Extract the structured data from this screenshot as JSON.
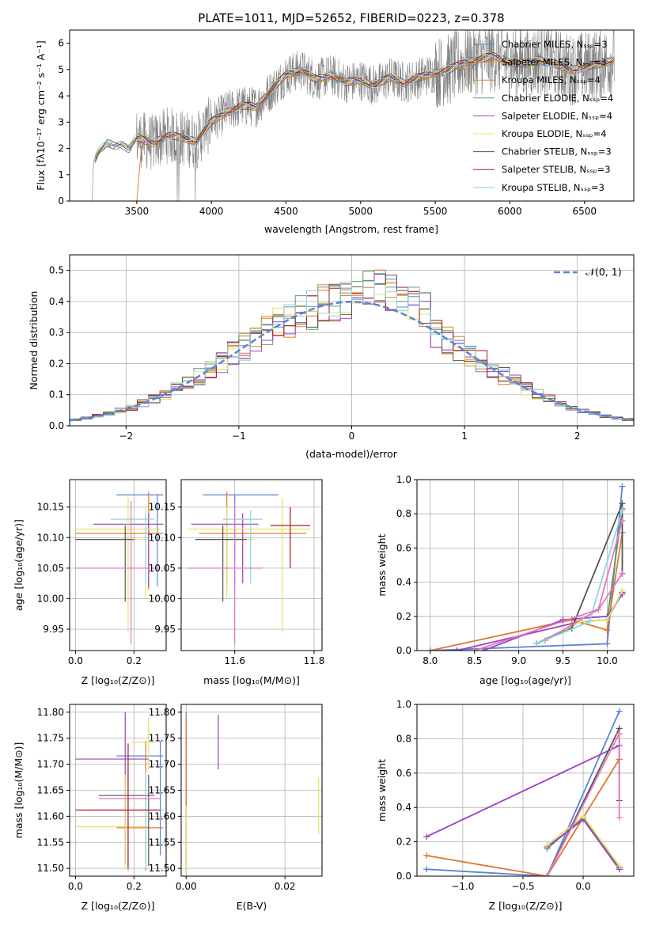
{
  "title": "PLATE=1011, MJD=52652, FIBERID=0223, z=0.378",
  "colors": {
    "series": [
      "#5b84d4",
      "#e0782a",
      "#d98b1c",
      "#5a9a6a",
      "#9b3fc0",
      "#e4e36a",
      "#555555",
      "#a51f1f",
      "#8fd3e0"
    ],
    "extra_pink": "#e377c2",
    "data_gray": "#808080",
    "normal_dash": "#5b84d4"
  },
  "spectrum": {
    "xlabel": "wavelength [Angstrom, rest frame]",
    "ylabel": "Flux [fλ10⁻¹⁷ erg cm⁻² s⁻¹ A⁻¹]",
    "legend": [
      "Chabrier MILES, Nₛₛₚ=3",
      "Salpeter MILES, Nₛₛₚ=3",
      "Kroupa MILES, Nₛₛₚ=4",
      "Chabrier ELODIE, Nₛₛₚ=4",
      "Salpeter ELODIE, Nₛₛₚ=4",
      "Kroupa ELODIE, Nₛₛₚ=4",
      "Chabrier STELIB, Nₛₛₚ=3",
      "Salpeter STELIB, Nₛₛₚ=3",
      "Kroupa STELIB, Nₛₛₚ=3"
    ]
  },
  "hist": {
    "xlabel": "(data-model)/error",
    "ylabel": "Normed distribution",
    "legend": "𝒩(0, 1)"
  },
  "panels": {
    "p3": {
      "xlabel": "Z [log₁₀(Z/Z⊙)]",
      "ylabel": "age  [log₁₀(age/yr)]"
    },
    "p4": {
      "xlabel": "mass [log₁₀(M/M⊙)]"
    },
    "p5": {
      "xlabel": "age  [log₁₀(age/yr)]",
      "ylabel": "mass weight"
    },
    "p6": {
      "xlabel": "Z [log₁₀(Z/Z⊙)]",
      "ylabel": "mass [log₁₀(M/M⊙)]"
    },
    "p7": {
      "xlabel": "E(B-V)"
    },
    "p8": {
      "xlabel": "Z [log₁₀(Z/Z⊙)]",
      "ylabel": "mass weight"
    }
  },
  "chart_data": [
    {
      "id": "spectrum",
      "type": "line",
      "title": "PLATE=1011, MJD=52652, FIBERID=0223, z=0.378",
      "xlabel": "wavelength [Angstrom, rest frame]",
      "ylabel": "Flux [fλ10⁻¹⁷ erg cm⁻² s⁻¹ A⁻¹]",
      "xlim": [
        3050,
        6830
      ],
      "ylim": [
        0,
        6.5
      ],
      "xticks": [
        3500,
        4000,
        4500,
        5000,
        5500,
        6000,
        6500
      ],
      "yticks": [
        0,
        1,
        2,
        3,
        4,
        5,
        6
      ],
      "continuum": {
        "x": [
          3210,
          3250,
          3300,
          3350,
          3400,
          3450,
          3500,
          3600,
          3700,
          3800,
          3900,
          4000,
          4100,
          4200,
          4300,
          4400,
          4500,
          4600,
          4700,
          4800,
          4900,
          5000,
          5100,
          5200,
          5300,
          5400,
          5500,
          5600,
          5700,
          5800,
          5900,
          6000,
          6100,
          6200,
          6300,
          6400,
          6500,
          6600,
          6700
        ],
        "y": [
          1.5,
          1.9,
          2.2,
          2.1,
          2.15,
          2.0,
          2.4,
          2.2,
          2.5,
          2.4,
          2.3,
          3.0,
          3.4,
          3.6,
          3.6,
          4.2,
          4.8,
          5.0,
          4.6,
          4.8,
          4.5,
          4.6,
          4.4,
          4.7,
          4.5,
          4.7,
          4.9,
          5.0,
          5.3,
          5.4,
          5.5,
          5.3,
          5.2,
          5.4,
          5.2,
          5.0,
          5.1,
          5.2,
          5.4
        ]
      },
      "series": [
        {
          "name": "Chabrier MILES, Nₛₛₚ=3"
        },
        {
          "name": "Salpeter MILES, Nₛₛₚ=3"
        },
        {
          "name": "Kroupa MILES, Nₛₛₚ=4"
        },
        {
          "name": "Chabrier ELODIE, Nₛₛₚ=4"
        },
        {
          "name": "Salpeter ELODIE, Nₛₛₚ=4"
        },
        {
          "name": "Kroupa ELODIE, Nₛₛₚ=4"
        },
        {
          "name": "Chabrier STELIB, Nₛₛₚ=3"
        },
        {
          "name": "Salpeter STELIB, Nₛₛₚ=3"
        },
        {
          "name": "Kroupa STELIB, Nₛₛₚ=3"
        }
      ]
    },
    {
      "id": "hist",
      "type": "line",
      "xlabel": "(data-model)/error",
      "ylabel": "Normed distribution",
      "xlim": [
        -2.5,
        2.5
      ],
      "ylim": [
        0,
        0.55
      ],
      "xticks": [
        -2,
        -1,
        0,
        1,
        2
      ],
      "yticks": [
        0.0,
        0.1,
        0.2,
        0.3,
        0.4,
        0.5
      ],
      "normal_curve": {
        "name": "𝒩(0, 1)",
        "mean": 0,
        "sigma": 1
      },
      "histogram_bin_width": 0.1,
      "histogram_series_count": 9,
      "legend_position": "upper right"
    },
    {
      "id": "p3",
      "type": "scatter",
      "xlabel": "Z [log₁₀(Z/Z⊙)]",
      "ylabel": "age  [log₁₀(age/yr)]",
      "xlim": [
        -0.02,
        0.31
      ],
      "ylim": [
        9.915,
        10.195
      ],
      "xticks": [
        0.0,
        0.2
      ],
      "yticks": [
        9.95,
        10.0,
        10.05,
        10.1,
        10.15
      ],
      "points": [
        {
          "x": 0.28,
          "y": 10.17,
          "xerr": [
            0.14,
            0.3
          ],
          "yerr": [
            10.02,
            10.17
          ]
        },
        {
          "x": 0.25,
          "y": 10.107,
          "xerr": [
            0.0,
            0.3
          ],
          "yerr": [
            10.015,
            10.175
          ]
        },
        {
          "x": 0.24,
          "y": 10.097,
          "xerr": [
            0.0,
            0.25
          ],
          "yerr": [
            10.0,
            10.15
          ]
        },
        {
          "x": 0.25,
          "y": 10.122,
          "xerr": [
            0.06,
            0.3
          ],
          "yerr": [
            10.02,
            10.14
          ]
        },
        {
          "x": 0.18,
          "y": 10.114,
          "xerr": [
            0.0,
            0.29
          ],
          "yerr": [
            9.945,
            10.165
          ]
        },
        {
          "x": 0.17,
          "y": 10.097,
          "xerr": [
            0.0,
            0.2
          ],
          "yerr": [
            9.995,
            10.12
          ]
        },
        {
          "x": 0.24,
          "y": 10.13,
          "xerr": [
            0.12,
            0.27
          ],
          "yerr": [
            10.025,
            10.14
          ]
        },
        {
          "x": 0.19,
          "y": 10.05,
          "xerr": [
            0.0,
            0.28
          ],
          "yerr": [
            9.925,
            10.16
          ]
        }
      ]
    },
    {
      "id": "p4",
      "type": "scatter",
      "xlabel": "mass [log₁₀(M/M⊙)]",
      "xlim": [
        11.465,
        11.82
      ],
      "ylim": [
        9.915,
        10.195
      ],
      "xticks": [
        11.6,
        11.8
      ],
      "yticks": [
        9.95,
        10.0,
        10.05,
        10.1,
        10.15
      ],
      "points": [
        {
          "x": 11.6,
          "y": 10.17,
          "xerr": [
            11.52,
            11.71
          ],
          "yerr": [
            10.02,
            10.17
          ]
        },
        {
          "x": 11.58,
          "y": 10.107,
          "xerr": [
            11.51,
            11.78
          ],
          "yerr": [
            10.02,
            10.175
          ]
        },
        {
          "x": 11.58,
          "y": 10.097,
          "xerr": [
            11.52,
            11.65
          ],
          "yerr": [
            10.0,
            10.15
          ]
        },
        {
          "x": 11.62,
          "y": 10.122,
          "xerr": [
            11.49,
            11.66
          ],
          "yerr": [
            10.025,
            10.14
          ]
        },
        {
          "x": 11.72,
          "y": 10.114,
          "xerr": [
            11.48,
            11.79
          ],
          "yerr": [
            9.945,
            10.165
          ]
        },
        {
          "x": 11.57,
          "y": 10.097,
          "xerr": [
            11.5,
            11.63
          ],
          "yerr": [
            9.995,
            10.12
          ]
        },
        {
          "x": 11.64,
          "y": 10.13,
          "xerr": [
            11.57,
            11.67
          ],
          "yerr": [
            10.025,
            10.145
          ]
        },
        {
          "x": 11.6,
          "y": 10.05,
          "xerr": [
            11.48,
            11.67
          ],
          "yerr": [
            9.925,
            10.16
          ]
        },
        {
          "x": 11.74,
          "y": 10.12,
          "xerr": [
            11.69,
            11.79
          ],
          "yerr": [
            10.05,
            10.15
          ]
        }
      ]
    },
    {
      "id": "p5",
      "type": "line",
      "xlabel": "age  [log₁₀(age/yr)]",
      "ylabel": "mass weight",
      "xlim": [
        7.85,
        10.3
      ],
      "ylim": [
        0,
        1.0
      ],
      "xticks": [
        8.0,
        8.5,
        9.0,
        9.5,
        10.0
      ],
      "yticks": [
        0.0,
        0.2,
        0.4,
        0.6,
        0.8,
        1.0
      ],
      "series": [
        {
          "x": [
            8.0,
            10.0,
            10.17
          ],
          "y": [
            0.0,
            0.04,
            0.96
          ]
        },
        {
          "x": [
            8.0,
            9.6,
            10.0,
            10.17
          ],
          "y": [
            0.0,
            0.18,
            0.12,
            0.69
          ]
        },
        {
          "x": [
            8.3,
            9.7,
            10.0,
            10.17
          ],
          "y": [
            0.0,
            0.17,
            0.18,
            0.34
          ]
        },
        {
          "x": [
            9.2,
            9.7,
            10.0,
            10.17
          ],
          "y": [
            0.04,
            0.17,
            0.18,
            0.83
          ]
        },
        {
          "x": [
            8.6,
            9.5,
            10.0,
            10.17
          ],
          "y": [
            0.0,
            0.18,
            0.2,
            0.33
          ]
        },
        {
          "x": [
            9.3,
            9.7,
            10.0,
            10.17
          ],
          "y": [
            0.06,
            0.17,
            0.18,
            0.35
          ]
        },
        {
          "x": [
            9.2,
            9.6,
            10.17,
            10.17
          ],
          "y": [
            0.04,
            0.13,
            0.86,
            0.45
          ]
        },
        {
          "x": [
            9.3,
            9.9,
            10.17
          ],
          "y": [
            0.06,
            0.24,
            0.45
          ]
        },
        {
          "x": [
            9.2,
            9.8,
            10.17
          ],
          "y": [
            0.04,
            0.17,
            0.82
          ]
        },
        {
          "x": [
            8.5,
            9.9,
            10.17
          ],
          "y": [
            0.0,
            0.24,
            0.76
          ]
        }
      ]
    },
    {
      "id": "p6",
      "type": "scatter",
      "xlabel": "Z [log₁₀(Z/Z⊙)]",
      "ylabel": "mass [log₁₀(M/M⊙)]",
      "xlim": [
        -0.02,
        0.31
      ],
      "ylim": [
        11.485,
        11.815
      ],
      "xticks": [
        0.0,
        0.2
      ],
      "yticks": [
        11.5,
        11.55,
        11.6,
        11.65,
        11.7,
        11.75,
        11.8
      ],
      "points": [
        {
          "x": 0.29,
          "y": 11.716,
          "xerr": [
            0.14,
            0.3
          ],
          "yerr": [
            11.525,
            11.745
          ]
        },
        {
          "x": 0.24,
          "y": 11.578,
          "xerr": [
            0.14,
            0.3
          ],
          "yerr": [
            11.495,
            11.745
          ]
        },
        {
          "x": 0.25,
          "y": 11.742,
          "xerr": [
            0.19,
            0.27
          ],
          "yerr": [
            11.69,
            11.79
          ]
        },
        {
          "x": 0.17,
          "y": 11.71,
          "xerr": [
            0.0,
            0.25
          ],
          "yerr": [
            11.51,
            11.8
          ]
        },
        {
          "x": 0.17,
          "y": 11.58,
          "xerr": [
            0.0,
            0.25
          ],
          "yerr": [
            11.5,
            11.68
          ]
        },
        {
          "x": 0.25,
          "y": 11.64,
          "xerr": [
            0.08,
            0.27
          ],
          "yerr": [
            11.505,
            11.68
          ]
        },
        {
          "x": 0.24,
          "y": 11.612,
          "xerr": [
            0.05,
            0.3
          ],
          "yerr": [
            11.5,
            11.685
          ]
        },
        {
          "x": 0.18,
          "y": 11.634,
          "xerr": [
            0.08,
            0.29
          ],
          "yerr": [
            11.495,
            11.7
          ]
        },
        {
          "x": 0.18,
          "y": 11.612,
          "xerr": [
            0.0,
            0.29
          ],
          "yerr": [
            11.5,
            11.74
          ]
        }
      ]
    },
    {
      "id": "p7",
      "type": "scatter",
      "xlabel": "E(B-V)",
      "xlim": [
        -0.001,
        0.0275
      ],
      "ylim": [
        11.485,
        11.815
      ],
      "xticks": [
        0.0,
        0.02
      ],
      "yticks": [
        11.5,
        11.55,
        11.6,
        11.65,
        11.7,
        11.75,
        11.8
      ],
      "points": [
        {
          "x": 0.0,
          "y": 11.8,
          "yerr": [
            11.5,
            11.8
          ]
        },
        {
          "x": 0.0,
          "y": 11.64,
          "yerr": [
            11.49,
            11.79
          ]
        },
        {
          "x": 0.0,
          "y": 11.56,
          "yerr": [
            11.49,
            11.62
          ]
        },
        {
          "x": 0.0065,
          "y": 11.74,
          "yerr": [
            11.69,
            11.795
          ]
        },
        {
          "x": 0.0268,
          "y": 11.62,
          "yerr": [
            11.565,
            11.675
          ]
        }
      ]
    },
    {
      "id": "p8",
      "type": "line",
      "xlabel": "Z [log₁₀(Z/Z⊙)]",
      "ylabel": "mass weight",
      "xlim": [
        -1.38,
        0.42
      ],
      "ylim": [
        0,
        1.0
      ],
      "xticks": [
        -1.0,
        -0.5,
        0.0
      ],
      "yticks": [
        0.0,
        0.2,
        0.4,
        0.6,
        0.8,
        1.0
      ],
      "series": [
        {
          "x": [
            -1.3,
            -0.3,
            0.3
          ],
          "y": [
            0.04,
            0.0,
            0.96
          ]
        },
        {
          "x": [
            -1.3,
            -0.3,
            0.3
          ],
          "y": [
            0.12,
            0.0,
            0.68
          ]
        },
        {
          "x": [
            -1.3,
            0.3
          ],
          "y": [
            0.23,
            0.76
          ]
        },
        {
          "x": [
            -0.3,
            0.0,
            0.3
          ],
          "y": [
            0.16,
            0.34,
            0.05
          ]
        },
        {
          "x": [
            -0.3,
            0.0,
            0.3
          ],
          "y": [
            0.17,
            0.33,
            0.04
          ]
        },
        {
          "x": [
            -0.3,
            0.0,
            0.3
          ],
          "y": [
            0.18,
            0.35,
            0.06
          ]
        },
        {
          "x": [
            -0.3,
            0.3,
            0.3
          ],
          "y": [
            0.0,
            0.86,
            0.44
          ]
        },
        {
          "x": [
            -0.3,
            0.3,
            0.3
          ],
          "y": [
            0.0,
            0.83,
            0.34
          ]
        }
      ]
    }
  ]
}
